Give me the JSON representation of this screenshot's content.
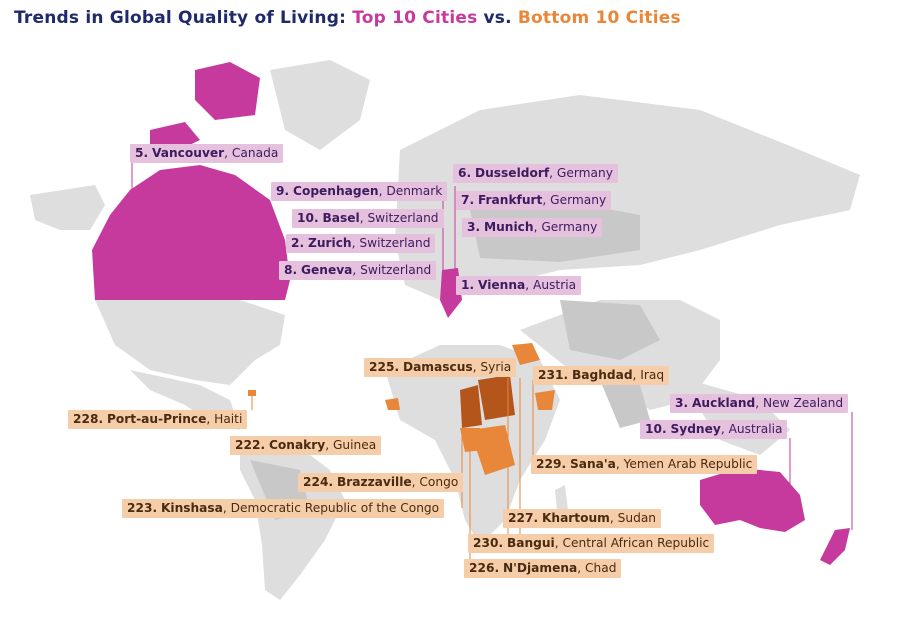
{
  "title": {
    "prefix": "Trends in Global Quality of Living: ",
    "top": "Top 10 Cities",
    "middle": " vs. ",
    "bottom": "Bottom 10 Cities"
  },
  "colors": {
    "top_highlight": "#c73a9d",
    "top_label_bg": "#e6c1dd",
    "bottom_highlight": "#e8873a",
    "bottom_dark": "#b4561c",
    "bottom_label_bg": "#f6cda9",
    "land_light": "#dedede",
    "land_dark": "#c8c8c8",
    "title_text": "#1f2a6b"
  },
  "top_cities": [
    {
      "rank": "5.",
      "city": "Vancouver",
      "country": "Canada"
    },
    {
      "rank": "9.",
      "city": "Copenhagen",
      "country": "Denmark"
    },
    {
      "rank": "10.",
      "city": "Basel",
      "country": "Switzerland"
    },
    {
      "rank": "2.",
      "city": "Zurich",
      "country": "Switzerland"
    },
    {
      "rank": "8.",
      "city": "Geneva",
      "country": "Switzerland"
    },
    {
      "rank": "6.",
      "city": "Dusseldorf",
      "country": "Germany"
    },
    {
      "rank": "7.",
      "city": "Frankfurt",
      "country": "Germany"
    },
    {
      "rank": "3.",
      "city": "Munich",
      "country": "Germany"
    },
    {
      "rank": "1.",
      "city": "Vienna",
      "country": "Austria"
    },
    {
      "rank": "3.",
      "city": "Auckland",
      "country": "New Zealand"
    },
    {
      "rank": "10.",
      "city": "Sydney",
      "country": "Australia"
    }
  ],
  "bottom_cities": [
    {
      "rank": "225.",
      "city": "Damascus",
      "country": "Syria"
    },
    {
      "rank": "231.",
      "city": "Baghdad",
      "country": "Iraq"
    },
    {
      "rank": "228.",
      "city": "Port-au-Prince",
      "country": "Haiti"
    },
    {
      "rank": "222.",
      "city": "Conakry",
      "country": "Guinea"
    },
    {
      "rank": "229.",
      "city": "Sana'a",
      "country": "Yemen Arab Republic"
    },
    {
      "rank": "224.",
      "city": "Brazzaville",
      "country": "Congo"
    },
    {
      "rank": "223.",
      "city": "Kinshasa",
      "country": "Democratic Republic of the Congo"
    },
    {
      "rank": "227.",
      "city": "Khartoum",
      "country": "Sudan"
    },
    {
      "rank": "230.",
      "city": "Bangui",
      "country": "Central African Republic"
    },
    {
      "rank": "226.",
      "city": "N'Djamena",
      "country": "Chad"
    }
  ]
}
